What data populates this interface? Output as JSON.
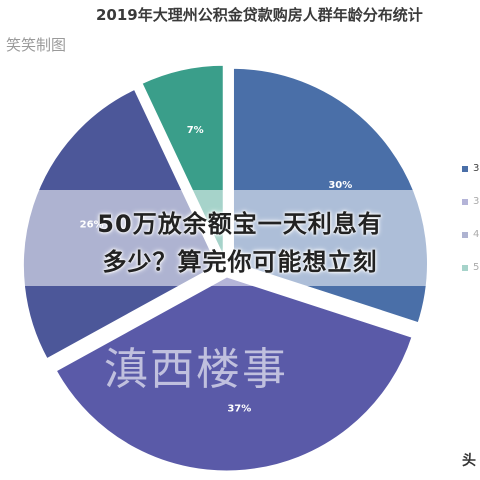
{
  "chart_data": {
    "type": "pie",
    "title": "2019年大理州公积金贷款购房人群年龄分布统计",
    "categories": [
      "3",
      "3",
      "4",
      "5"
    ],
    "values": [
      30,
      37,
      26,
      7
    ],
    "labels": [
      "30%",
      "37%",
      "26%",
      "7%"
    ],
    "colors": [
      "#4a6fa8",
      "#5a5aa8",
      "#4c5799",
      "#3a9e8a"
    ],
    "legend_position": "right",
    "exploded": true
  },
  "watermark_top_left": "笑笑制图",
  "overlay": {
    "line1": "50万放余额宝一天利息有",
    "line2": "多少？算完你可能想立刻"
  },
  "watermark_center": "滇西楼事",
  "corner_text": "头"
}
